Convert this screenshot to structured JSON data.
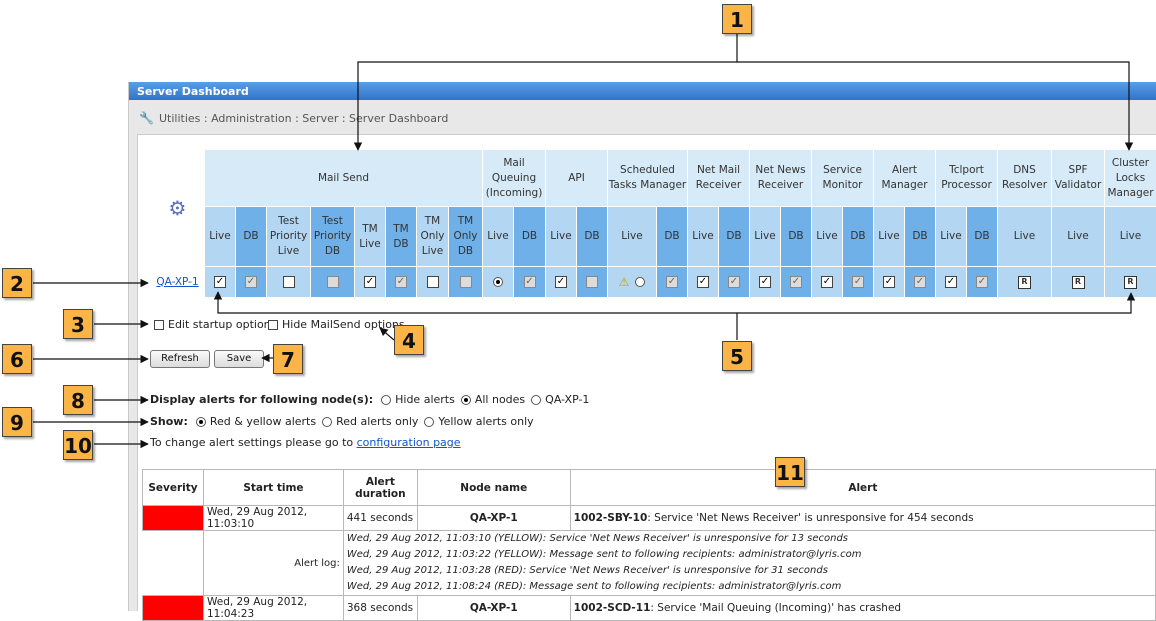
{
  "window": {
    "title": "Server Dashboard"
  },
  "breadcrumb": "Utilities : Administration : Server : Server Dashboard",
  "grid": {
    "groups": [
      "Mail Send",
      "Mail Queuing (Incoming)",
      "API",
      "Scheduled Tasks Manager",
      "Net Mail Receiver",
      "Net News Receiver",
      "Service Monitor",
      "Alert Manager",
      "Tclport Processor",
      "DNS Resolver",
      "SPF Validator",
      "Cluster Locks Manager"
    ],
    "subheaders": [
      "Live",
      "DB",
      "Test Priority Live",
      "Test Priority DB",
      "TM Live",
      "TM DB",
      "TM Only Live",
      "TM Only DB",
      "Live",
      "DB",
      "Live",
      "DB",
      "Live",
      "DB",
      "Live",
      "DB",
      "Live",
      "DB",
      "Live",
      "DB",
      "Live",
      "DB",
      "Live",
      "DB",
      "Live",
      "Live",
      "Live"
    ],
    "node": "QA-XP-1",
    "status_icon": "R"
  },
  "options": {
    "edit_startup": "Edit startup options",
    "hide_mailsend": "Hide MailSend options"
  },
  "buttons": {
    "refresh": "Refresh",
    "save": "Save"
  },
  "display_alerts": {
    "label": "Display alerts for following node(s):",
    "hide": "Hide alerts",
    "all": "All nodes",
    "node": "QA-XP-1"
  },
  "show": {
    "label": "Show:",
    "red_yellow": "Red & yellow alerts",
    "red": "Red alerts only",
    "yellow": "Yellow alerts only"
  },
  "config_note": {
    "text": "To change alert settings please go to",
    "link": "configuration page"
  },
  "alerts_table": {
    "headers": [
      "Severity",
      "Start time",
      "Alert duration",
      "Node name",
      "Alert"
    ],
    "rows": [
      {
        "start": "Wed, 29 Aug 2012, 11:03:10",
        "duration": "441 seconds",
        "node": "QA-XP-1",
        "code": "1002-SBY-10",
        "message": ": Service 'Net News Receiver' is unresponsive for 454 seconds"
      },
      {
        "start": "Wed, 29 Aug 2012, 11:04:23",
        "duration": "368 seconds",
        "node": "QA-XP-1",
        "code": "1002-SCD-11",
        "message": ": Service 'Mail Queuing (Incoming)' has crashed"
      }
    ],
    "log_label": "Alert log:",
    "log_lines": [
      "Wed, 29 Aug 2012, 11:03:10 (YELLOW): Service 'Net News Receiver' is unresponsive for 13 seconds",
      "Wed, 29 Aug 2012, 11:03:22 (YELLOW): Message sent to following recipients: administrator@lyris.com",
      "Wed, 29 Aug 2012, 11:03:28 (RED): Service 'Net News Receiver' is unresponsive for 31 seconds",
      "Wed, 29 Aug 2012, 11:08:24 (RED): Message sent to following recipients: administrator@lyris.com"
    ]
  },
  "callouts": [
    "1",
    "2",
    "3",
    "4",
    "5",
    "6",
    "7",
    "8",
    "9",
    "10",
    "11"
  ],
  "colors": {
    "callout": "#fbb547",
    "severity_red": "#ff0000",
    "title_blue": "#2f74c9"
  }
}
